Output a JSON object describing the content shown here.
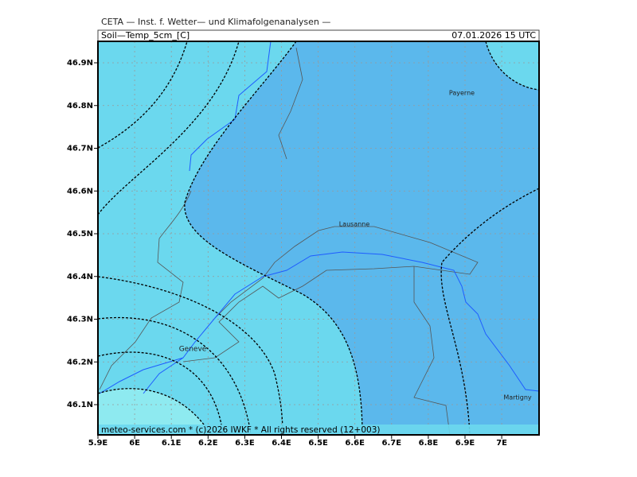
{
  "header": {
    "institute": "CETA — Inst. f. Wetter— und Klimafolgenanalysen —",
    "title": "Soil—Temp_5cm_[C]",
    "date": "07.01.2026 15 UTC"
  },
  "map": {
    "lat_ticks": [
      "46.9N",
      "46.8N",
      "46.7N",
      "46.6N",
      "46.5N",
      "46.4N",
      "46.3N",
      "46.2N",
      "46.1N"
    ],
    "lon_ticks": [
      "5.9E",
      "6E",
      "6.1E",
      "6.2E",
      "6.3E",
      "6.4E",
      "6.5E",
      "6.6E",
      "6.7E",
      "6.8E",
      "6.9E",
      "7E"
    ],
    "cities": [
      "Payerne",
      "Lausanne",
      "Geneve",
      "Martigny"
    ]
  },
  "footer": {
    "credit": "meteo-services.com * (c)2026 IWKF * All rights reserved (12+003)"
  }
}
